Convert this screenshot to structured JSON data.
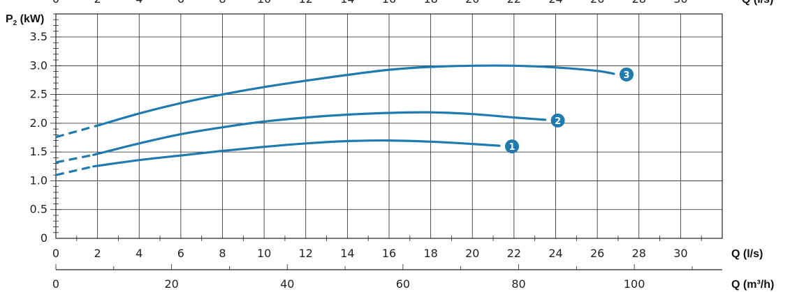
{
  "chart_data": {
    "type": "line",
    "xlabel": "Q (l/s)",
    "x2label": "Q (m³/h)",
    "ylabel": "P",
    "ylabel_sub": "2",
    "ylabel_unit": "(kW)",
    "top_label": "Q (l/s)",
    "xlim": [
      0,
      32
    ],
    "ylim": [
      0,
      3.9
    ],
    "x_ticks": [
      0,
      2,
      4,
      6,
      8,
      10,
      12,
      14,
      16,
      18,
      20,
      22,
      24,
      26,
      28,
      30
    ],
    "x_tick_labels": [
      "0",
      "2",
      "4",
      "6",
      "8",
      "10",
      "12",
      "14",
      "16",
      "18",
      "20",
      "22",
      "24",
      "26",
      "28",
      "30"
    ],
    "y_ticks": [
      0,
      0.5,
      1.0,
      1.5,
      2.0,
      2.5,
      3.0,
      3.5
    ],
    "y_tick_labels": [
      "0",
      "0.5",
      "1.0",
      "1.5",
      "2.0",
      "2.5",
      "3.0",
      "3.5"
    ],
    "x2_ticks": [
      0,
      20,
      40,
      60,
      80,
      100
    ],
    "x2_tick_labels": [
      "0",
      "20",
      "40",
      "60",
      "80",
      "100"
    ],
    "grid": true,
    "line_color": "#1f7ab0",
    "badge_color": "#1f7ab0",
    "series": [
      {
        "name": "1",
        "x": [
          1.8,
          4,
          6,
          8,
          10,
          12,
          14,
          16,
          18,
          20,
          21.3
        ],
        "y": [
          1.25,
          1.36,
          1.44,
          1.52,
          1.59,
          1.65,
          1.69,
          1.7,
          1.68,
          1.64,
          1.61
        ],
        "dash_x": [
          0,
          1.8
        ],
        "dash_y": [
          1.1,
          1.25
        ]
      },
      {
        "name": "2",
        "x": [
          1.8,
          4,
          6,
          8,
          10,
          12,
          14,
          16,
          18,
          20,
          22,
          23.5
        ],
        "y": [
          1.45,
          1.65,
          1.81,
          1.93,
          2.03,
          2.1,
          2.15,
          2.18,
          2.19,
          2.16,
          2.1,
          2.06
        ],
        "dash_x": [
          0,
          1.8
        ],
        "dash_y": [
          1.32,
          1.45
        ]
      },
      {
        "name": "3",
        "x": [
          2,
          4,
          6,
          8,
          10,
          12,
          14,
          16,
          18,
          20,
          22,
          24,
          26,
          26.8
        ],
        "y": [
          1.96,
          2.17,
          2.35,
          2.5,
          2.63,
          2.74,
          2.84,
          2.93,
          2.98,
          3.0,
          3.0,
          2.97,
          2.91,
          2.86
        ],
        "dash_x": [
          0,
          2
        ],
        "dash_y": [
          1.76,
          1.96
        ]
      }
    ]
  }
}
